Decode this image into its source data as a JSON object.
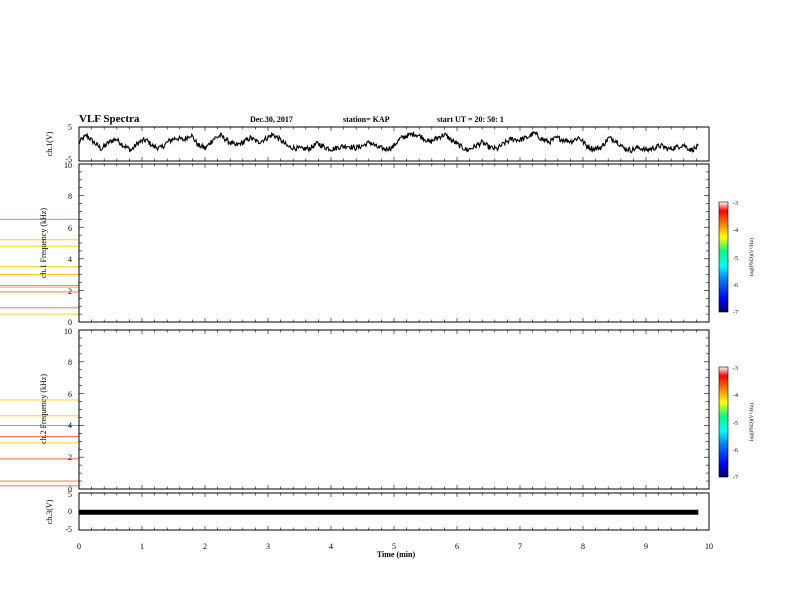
{
  "header": {
    "title": "VLF Spectra",
    "date": "Dec.30, 2017",
    "station": "station= KAP",
    "start": "start  UT =    20: 50: 1"
  },
  "chart_data": [
    {
      "type": "line",
      "name": "ch1-waveform",
      "ylabel": "ch.1(V)",
      "yticks": [
        "5",
        "-5"
      ],
      "ylim": [
        -5,
        5
      ],
      "xlim": [
        0,
        10
      ],
      "data_extent_min": 9.83,
      "values_approx": [
        0.5,
        2.5,
        0.5,
        -1.5,
        0.5,
        1.5,
        -0.5,
        -1.8,
        0.5,
        1.2,
        -0.8,
        -1.2,
        0.8,
        1.8,
        1.2,
        2.8,
        -0.5,
        -1.2,
        1.5,
        2.5,
        0.8,
        -0.5,
        0.5,
        1.8,
        0.5,
        1.5,
        2.8,
        1.2,
        -0.8,
        -1.2,
        -1.5,
        -1.2,
        0.2,
        -1.0,
        -1.5,
        -0.8,
        -0.5,
        -1.2,
        -0.5,
        0.5,
        -1.0,
        -1.5,
        -1.0,
        1.5,
        2.5,
        3.0,
        2.0,
        0.5,
        1.8,
        2.8,
        1.0,
        -0.5,
        -1.8,
        -0.8,
        0.5,
        -1.0,
        -1.5,
        0.2,
        1.5,
        1.2,
        1.8,
        3.2,
        1.5,
        0.5,
        1.8,
        1.2,
        0.8,
        2.0,
        -0.5,
        -1.5,
        -1.0,
        1.8,
        1.0,
        -1.2,
        -1.8,
        -1.0,
        -1.8,
        -1.2,
        -0.5,
        -1.5,
        -1.0,
        -0.2,
        -1.8,
        -0.8
      ]
    },
    {
      "type": "heatmap",
      "name": "ch1-spectrogram",
      "ylabel": "ch.1 Frequency (kHz)",
      "yticks": [
        "0",
        "2",
        "4",
        "6",
        "8",
        "10"
      ],
      "ylim": [
        0,
        10
      ],
      "xlim": [
        0,
        10
      ],
      "zlim": [
        -7,
        -3
      ],
      "strong_bands_khz": [
        0.5,
        0.9,
        1.9,
        2.2,
        2.3,
        3.0,
        3.5,
        4.8,
        5.2,
        6.5
      ],
      "colorbar": {
        "label": "log(PSD)(V²/Hz)",
        "ticks": [
          "-3",
          "-4",
          "-5",
          "-6",
          "-7"
        ]
      }
    },
    {
      "type": "heatmap",
      "name": "ch2-spectrogram",
      "ylabel": "ch.2 Frequency (kHz)",
      "yticks": [
        "0",
        "2",
        "4",
        "6",
        "8",
        "10"
      ],
      "ylim": [
        0,
        10
      ],
      "xlim": [
        0,
        10
      ],
      "zlim": [
        -7,
        -3
      ],
      "strong_bands_khz": [
        0.2,
        0.5,
        1.9,
        2.9,
        3.3,
        4.0,
        4.6,
        5.6
      ],
      "colorbar": {
        "label": "log(PSD)(V²/Hz)",
        "ticks": [
          "-3",
          "-4",
          "-5",
          "-6",
          "-7"
        ]
      }
    },
    {
      "type": "line",
      "name": "ch3-waveform",
      "ylabel": "ch.3(V)",
      "yticks": [
        "5",
        "0",
        "-5"
      ],
      "ylim": [
        -5,
        5
      ],
      "xlim": [
        0,
        10
      ],
      "data_extent_min": 9.83,
      "values_approx": [
        -0.2
      ]
    }
  ],
  "xaxis": {
    "label": "Time  (min)",
    "ticks": [
      "0",
      "1",
      "2",
      "3",
      "4",
      "5",
      "6",
      "7",
      "8",
      "9",
      "10"
    ]
  },
  "colors": {
    "line": "#000000",
    "colormap": [
      "#000066",
      "#0000ff",
      "#0080ff",
      "#00ffff",
      "#00ff80",
      "#ffff00",
      "#ff8000",
      "#ff0000",
      "#ffffff"
    ]
  }
}
